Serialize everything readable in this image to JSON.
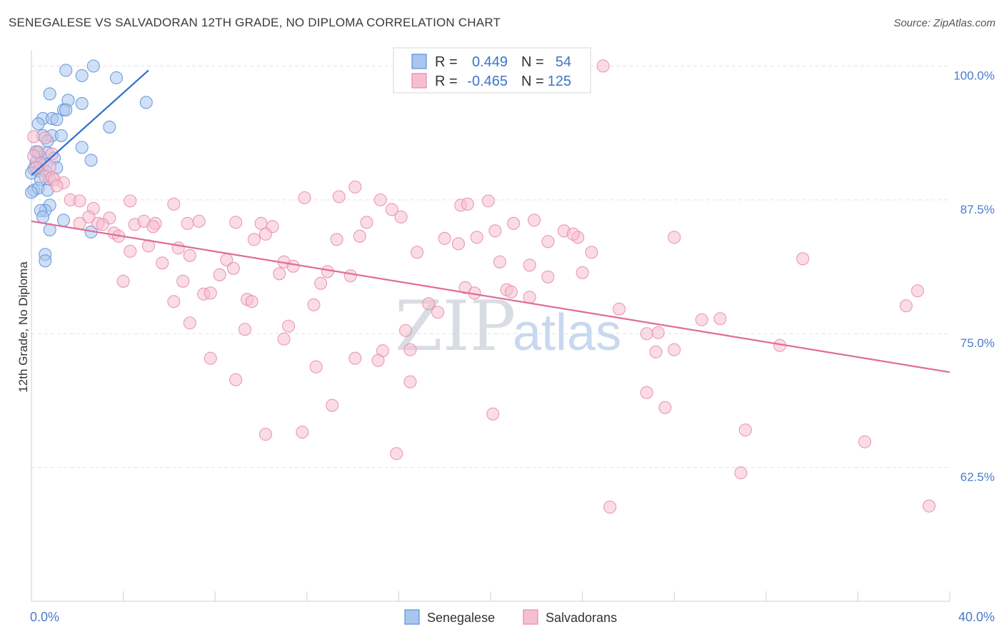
{
  "header": {
    "title": "SENEGALESE VS SALVADORAN 12TH GRADE, NO DIPLOMA CORRELATION CHART",
    "source": "Source: ZipAtlas.com"
  },
  "watermark": {
    "zip": "ZIP",
    "atlas": "atlas"
  },
  "colors": {
    "senegalese_fill": "#a9c6ee",
    "senegalese_stroke": "#5b8fd6",
    "senegalese_line": "#2f6fcf",
    "salvadoran_fill": "#f6bfd0",
    "salvadoran_stroke": "#e88aa8",
    "salvadoran_line": "#e06c97",
    "accent_text": "#3f74c9",
    "grid": "#e3e3e3"
  },
  "legend": {
    "rows": [
      {
        "r_label": "R =",
        "r_value": "0.449",
        "n_label": "N =",
        "n_value": "54"
      },
      {
        "r_label": "R =",
        "r_value": "-0.465",
        "n_label": "N =",
        "n_value": "125"
      }
    ]
  },
  "bottom_legend": [
    "Senegalese",
    "Salvadorans"
  ],
  "chart_data": {
    "type": "scatter",
    "ylabel": "12th Grade, No Diploma",
    "xlim": [
      0,
      40
    ],
    "ylim": [
      50,
      101.5
    ],
    "x_tick_labels": [
      "0.0%",
      "40.0%"
    ],
    "y_ticks": [
      62.5,
      75.0,
      87.5,
      100.0
    ],
    "y_tick_labels": [
      "62.5%",
      "75.0%",
      "87.5%",
      "100.0%"
    ],
    "grid": true,
    "legend_placement": "top-center",
    "series": [
      {
        "name": "Senegalese",
        "R": 0.449,
        "N": 54,
        "trend": {
          "x": [
            0.0,
            5.1
          ],
          "y": [
            89.8,
            99.6
          ]
        },
        "points": [
          [
            1.5,
            99.6
          ],
          [
            2.7,
            100.0
          ],
          [
            2.2,
            99.1
          ],
          [
            3.7,
            98.9
          ],
          [
            0.8,
            97.4
          ],
          [
            1.6,
            96.8
          ],
          [
            2.2,
            96.5
          ],
          [
            5.0,
            96.6
          ],
          [
            1.4,
            95.9
          ],
          [
            1.5,
            95.9
          ],
          [
            0.5,
            95.1
          ],
          [
            0.9,
            95.1
          ],
          [
            1.1,
            95.0
          ],
          [
            0.3,
            94.6
          ],
          [
            3.4,
            94.3
          ],
          [
            0.5,
            93.5
          ],
          [
            0.9,
            93.5
          ],
          [
            1.3,
            93.5
          ],
          [
            0.7,
            93.0
          ],
          [
            2.2,
            92.4
          ],
          [
            0.3,
            91.9
          ],
          [
            0.7,
            91.9
          ],
          [
            0.4,
            91.5
          ],
          [
            1.0,
            91.4
          ],
          [
            2.6,
            91.2
          ],
          [
            0.2,
            91.0
          ],
          [
            0.5,
            90.7
          ],
          [
            0.1,
            90.4
          ],
          [
            0.3,
            90.2
          ],
          [
            1.1,
            90.5
          ],
          [
            0.6,
            90.2
          ],
          [
            0.0,
            90.0
          ],
          [
            0.4,
            89.4
          ],
          [
            0.8,
            89.4
          ],
          [
            0.1,
            88.4
          ],
          [
            0.3,
            88.6
          ],
          [
            0.7,
            88.4
          ],
          [
            0.0,
            88.2
          ],
          [
            0.8,
            87.0
          ],
          [
            0.6,
            86.5
          ],
          [
            0.4,
            86.5
          ],
          [
            0.5,
            85.9
          ],
          [
            1.4,
            85.6
          ],
          [
            0.8,
            84.7
          ],
          [
            2.6,
            84.5
          ],
          [
            0.6,
            82.4
          ],
          [
            0.6,
            81.8
          ],
          [
            0.2,
            92.0
          ]
        ]
      },
      {
        "name": "Salvadorans",
        "R": -0.465,
        "N": 125,
        "trend": {
          "x": [
            0.0,
            40.0
          ],
          "y": [
            85.5,
            71.4
          ]
        },
        "points": [
          [
            0.1,
            93.4
          ],
          [
            0.6,
            93.3
          ],
          [
            0.3,
            92.0
          ],
          [
            0.1,
            91.6
          ],
          [
            0.9,
            91.8
          ],
          [
            0.4,
            90.9
          ],
          [
            0.8,
            90.6
          ],
          [
            0.2,
            90.5
          ],
          [
            0.6,
            89.7
          ],
          [
            0.9,
            89.6
          ],
          [
            1.0,
            89.4
          ],
          [
            1.4,
            89.1
          ],
          [
            1.1,
            88.8
          ],
          [
            1.7,
            87.5
          ],
          [
            2.1,
            87.4
          ],
          [
            2.7,
            86.7
          ],
          [
            3.4,
            85.8
          ],
          [
            2.5,
            85.9
          ],
          [
            2.9,
            85.3
          ],
          [
            3.1,
            85.2
          ],
          [
            2.1,
            85.3
          ],
          [
            3.6,
            84.4
          ],
          [
            3.8,
            84.1
          ],
          [
            4.5,
            85.2
          ],
          [
            4.9,
            85.5
          ],
          [
            5.4,
            85.3
          ],
          [
            5.3,
            85.0
          ],
          [
            6.2,
            87.1
          ],
          [
            6.8,
            85.3
          ],
          [
            4.3,
            87.4
          ],
          [
            7.3,
            85.5
          ],
          [
            8.9,
            85.4
          ],
          [
            10.0,
            85.3
          ],
          [
            10.5,
            85.0
          ],
          [
            10.2,
            84.3
          ],
          [
            9.7,
            83.8
          ],
          [
            11.9,
            87.7
          ],
          [
            13.4,
            87.8
          ],
          [
            14.1,
            88.7
          ],
          [
            15.2,
            87.5
          ],
          [
            15.7,
            86.6
          ],
          [
            16.1,
            85.9
          ],
          [
            14.6,
            85.4
          ],
          [
            14.3,
            84.1
          ],
          [
            13.3,
            83.8
          ],
          [
            18.0,
            83.9
          ],
          [
            18.6,
            83.4
          ],
          [
            19.4,
            84.0
          ],
          [
            18.7,
            87.0
          ],
          [
            19.0,
            87.1
          ],
          [
            19.9,
            87.4
          ],
          [
            20.2,
            84.6
          ],
          [
            21.0,
            85.3
          ],
          [
            21.9,
            85.6
          ],
          [
            22.5,
            83.6
          ],
          [
            23.2,
            84.6
          ],
          [
            23.8,
            84.0
          ],
          [
            23.6,
            84.3
          ],
          [
            24.4,
            82.6
          ],
          [
            16.8,
            82.6
          ],
          [
            20.4,
            81.7
          ],
          [
            21.7,
            81.4
          ],
          [
            4.3,
            82.7
          ],
          [
            5.1,
            83.2
          ],
          [
            5.7,
            81.6
          ],
          [
            6.4,
            83.0
          ],
          [
            6.9,
            82.3
          ],
          [
            8.5,
            81.9
          ],
          [
            8.8,
            81.1
          ],
          [
            11.0,
            81.7
          ],
          [
            11.4,
            81.3
          ],
          [
            12.9,
            80.8
          ],
          [
            13.9,
            80.4
          ],
          [
            10.8,
            80.6
          ],
          [
            8.2,
            80.5
          ],
          [
            6.6,
            79.9
          ],
          [
            4.0,
            79.9
          ],
          [
            12.6,
            79.7
          ],
          [
            18.9,
            79.3
          ],
          [
            19.3,
            78.8
          ],
          [
            20.7,
            79.1
          ],
          [
            20.9,
            78.9
          ],
          [
            21.7,
            78.4
          ],
          [
            22.5,
            80.3
          ],
          [
            24.0,
            80.7
          ],
          [
            7.5,
            78.7
          ],
          [
            7.8,
            78.8
          ],
          [
            9.4,
            78.2
          ],
          [
            9.6,
            78.0
          ],
          [
            6.2,
            78.0
          ],
          [
            12.3,
            77.7
          ],
          [
            17.3,
            77.8
          ],
          [
            17.7,
            77.0
          ],
          [
            25.6,
            77.3
          ],
          [
            28.0,
            84.0
          ],
          [
            27.3,
            75.1
          ],
          [
            26.8,
            75.0
          ],
          [
            6.9,
            76.0
          ],
          [
            9.3,
            75.4
          ],
          [
            11.2,
            75.7
          ],
          [
            11.0,
            74.5
          ],
          [
            16.3,
            75.3
          ],
          [
            29.2,
            76.3
          ],
          [
            30.0,
            76.4
          ],
          [
            33.6,
            82.0
          ],
          [
            38.1,
            77.6
          ],
          [
            38.6,
            79.0
          ],
          [
            32.6,
            73.9
          ],
          [
            27.2,
            73.3
          ],
          [
            28.0,
            73.5
          ],
          [
            15.3,
            73.4
          ],
          [
            16.5,
            73.5
          ],
          [
            7.8,
            72.7
          ],
          [
            14.1,
            72.7
          ],
          [
            15.1,
            72.5
          ],
          [
            12.4,
            71.9
          ],
          [
            8.9,
            70.7
          ],
          [
            16.5,
            70.5
          ],
          [
            13.1,
            68.3
          ],
          [
            26.8,
            69.5
          ],
          [
            20.1,
            67.5
          ],
          [
            27.6,
            68.1
          ],
          [
            10.2,
            65.6
          ],
          [
            11.8,
            65.8
          ],
          [
            15.9,
            63.8
          ],
          [
            31.1,
            66.0
          ],
          [
            36.3,
            64.9
          ],
          [
            30.9,
            62.0
          ],
          [
            25.2,
            58.8
          ],
          [
            39.1,
            58.9
          ],
          [
            24.9,
            100.0
          ]
        ]
      }
    ]
  }
}
